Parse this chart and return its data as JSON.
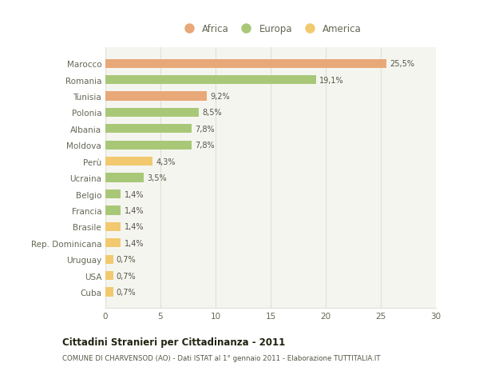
{
  "categories": [
    "Cuba",
    "USA",
    "Uruguay",
    "Rep. Dominicana",
    "Brasile",
    "Francia",
    "Belgio",
    "Ucraina",
    "Perù",
    "Moldova",
    "Albania",
    "Polonia",
    "Tunisia",
    "Romania",
    "Marocco"
  ],
  "values": [
    0.7,
    0.7,
    0.7,
    1.4,
    1.4,
    1.4,
    1.4,
    3.5,
    4.3,
    7.8,
    7.8,
    8.5,
    9.2,
    19.1,
    25.5
  ],
  "labels": [
    "0,7%",
    "0,7%",
    "0,7%",
    "1,4%",
    "1,4%",
    "1,4%",
    "1,4%",
    "3,5%",
    "4,3%",
    "7,8%",
    "7,8%",
    "8,5%",
    "9,2%",
    "19,1%",
    "25,5%"
  ],
  "colors": [
    "#f2c96e",
    "#f2c96e",
    "#f2c96e",
    "#f2c96e",
    "#f2c96e",
    "#a8c878",
    "#a8c878",
    "#a8c878",
    "#f2c96e",
    "#a8c878",
    "#a8c878",
    "#a8c878",
    "#e8a878",
    "#a8c878",
    "#e8a878"
  ],
  "legend": [
    {
      "label": "Africa",
      "color": "#e8a878"
    },
    {
      "label": "Europa",
      "color": "#a8c878"
    },
    {
      "label": "America",
      "color": "#f2c96e"
    }
  ],
  "xlim": [
    0,
    30
  ],
  "xticks": [
    0,
    5,
    10,
    15,
    20,
    25,
    30
  ],
  "title": "Cittadini Stranieri per Cittadinanza - 2011",
  "subtitle": "COMUNE DI CHARVENSOD (AO) - Dati ISTAT al 1° gennaio 2011 - Elaborazione TUTTITALIA.IT",
  "background_color": "#ffffff",
  "plot_bg_color": "#f5f5f0",
  "grid_color": "#e0e0d8",
  "bar_height": 0.55,
  "text_color": "#666655",
  "label_color": "#555544",
  "title_color": "#222211",
  "subtitle_color": "#555544"
}
